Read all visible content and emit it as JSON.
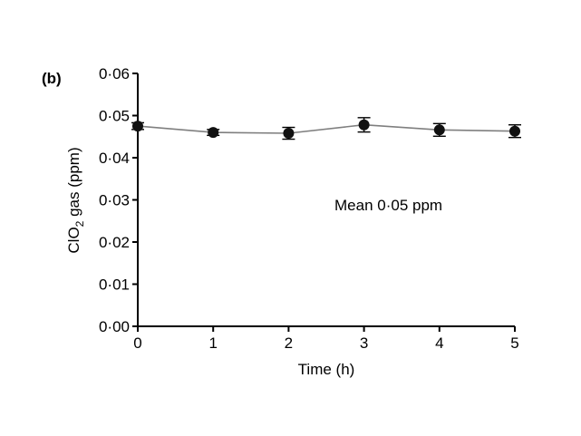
{
  "chart_data": {
    "type": "line",
    "panel_label": "(b)",
    "x": [
      0,
      1,
      2,
      3,
      4,
      5
    ],
    "series": [
      {
        "values": [
          0.0475,
          0.046,
          0.0458,
          0.0478,
          0.0466,
          0.0463
        ],
        "error": [
          0.0008,
          0.0007,
          0.0014,
          0.0017,
          0.0015,
          0.0015
        ]
      }
    ],
    "xlabel": "Time (h)",
    "ylabel_main": "ClO",
    "ylabel_subscript": "2",
    "ylabel_rest": " gas (ppm)",
    "xlim": [
      0,
      5
    ],
    "ylim": [
      0,
      0.06
    ],
    "x_ticks": [
      0,
      1,
      2,
      3,
      4,
      5
    ],
    "x_tick_labels": [
      "0",
      "1",
      "2",
      "3",
      "4",
      "5"
    ],
    "y_ticks": [
      0,
      0.01,
      0.02,
      0.03,
      0.04,
      0.05,
      0.06
    ],
    "y_tick_labels": [
      "0·00",
      "0·01",
      "0·02",
      "0·03",
      "0·04",
      "0·05",
      "0·06"
    ],
    "annotation": "Mean 0·05 ppm",
    "grid": false,
    "line_color": "#7f7f7f",
    "marker_color": "#111111"
  }
}
